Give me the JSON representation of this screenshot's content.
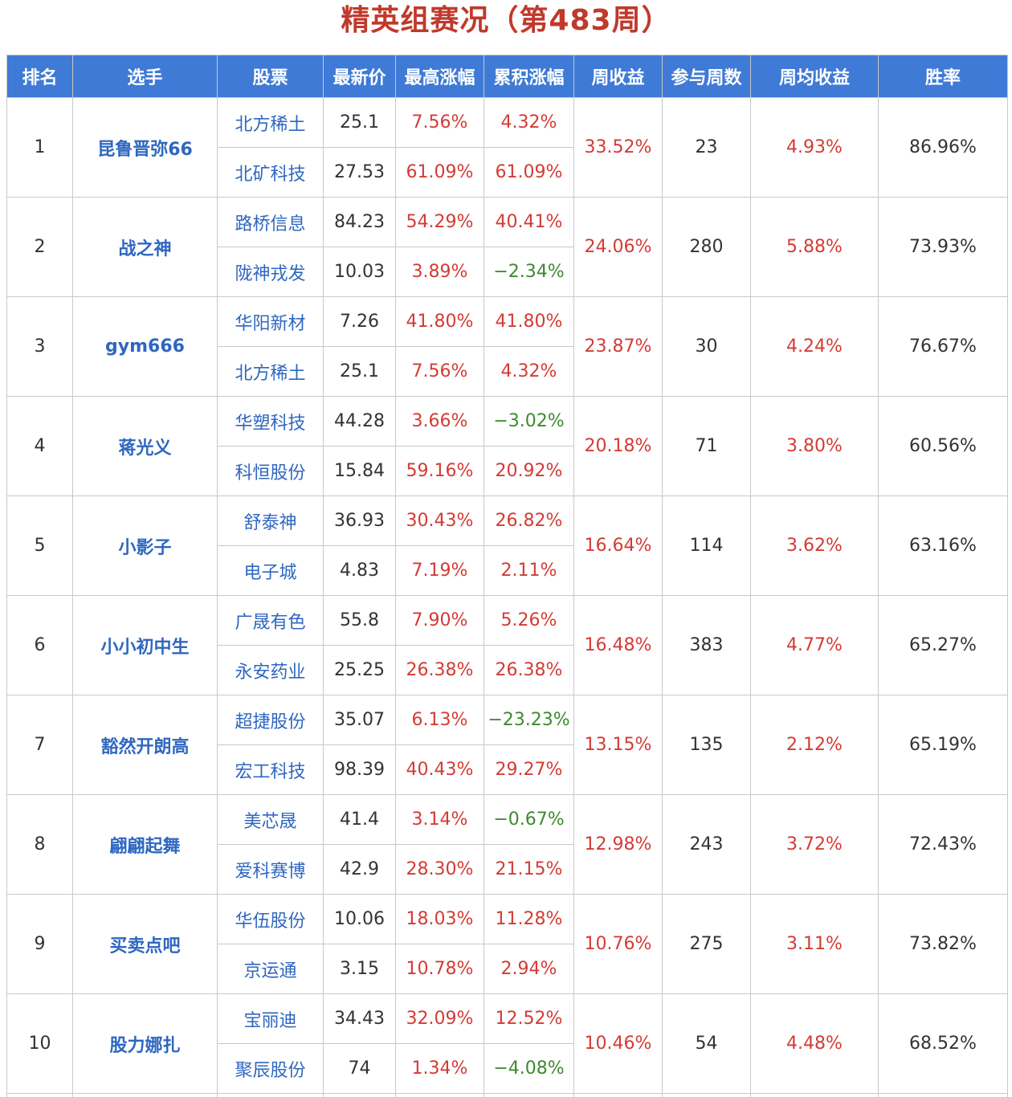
{
  "title": "精英组赛况（第483周）",
  "colors": {
    "title": "#c0392b",
    "header_bg": "#3f7ad6",
    "header_text": "#ffffff",
    "link_blue": "#2f67c0",
    "positive_red": "#d33b35",
    "negative_green": "#3e8a2e",
    "grid": "#c8c8c8"
  },
  "table": {
    "headers": [
      "排名",
      "选手",
      "股票",
      "最新价",
      "最高涨幅",
      "累积涨幅",
      "周收益",
      "参与周数",
      "周均收益",
      "胜率"
    ],
    "rows": [
      {
        "rank": "1",
        "player": "昆鲁晋弥66",
        "stocks": [
          {
            "name": "北方稀土",
            "price": "25.1",
            "max_gain": "7.56%",
            "cum_gain": "4.32%"
          },
          {
            "name": "北矿科技",
            "price": "27.53",
            "max_gain": "61.09%",
            "cum_gain": "61.09%"
          }
        ],
        "weekly_return": "33.52%",
        "weeks": "23",
        "avg_return": "4.93%",
        "win_rate": "86.96%"
      },
      {
        "rank": "2",
        "player": "战之神",
        "stocks": [
          {
            "name": "路桥信息",
            "price": "84.23",
            "max_gain": "54.29%",
            "cum_gain": "40.41%"
          },
          {
            "name": "陇神戎发",
            "price": "10.03",
            "max_gain": "3.89%",
            "cum_gain": "−2.34%"
          }
        ],
        "weekly_return": "24.06%",
        "weeks": "280",
        "avg_return": "5.88%",
        "win_rate": "73.93%"
      },
      {
        "rank": "3",
        "player": "gym666",
        "stocks": [
          {
            "name": "华阳新材",
            "price": "7.26",
            "max_gain": "41.80%",
            "cum_gain": "41.80%"
          },
          {
            "name": "北方稀土",
            "price": "25.1",
            "max_gain": "7.56%",
            "cum_gain": "4.32%"
          }
        ],
        "weekly_return": "23.87%",
        "weeks": "30",
        "avg_return": "4.24%",
        "win_rate": "76.67%"
      },
      {
        "rank": "4",
        "player": "蒋光义",
        "stocks": [
          {
            "name": "华塑科技",
            "price": "44.28",
            "max_gain": "3.66%",
            "cum_gain": "−3.02%"
          },
          {
            "name": "科恒股份",
            "price": "15.84",
            "max_gain": "59.16%",
            "cum_gain": "20.92%"
          }
        ],
        "weekly_return": "20.18%",
        "weeks": "71",
        "avg_return": "3.80%",
        "win_rate": "60.56%"
      },
      {
        "rank": "5",
        "player": "小影子",
        "stocks": [
          {
            "name": "舒泰神",
            "price": "36.93",
            "max_gain": "30.43%",
            "cum_gain": "26.82%"
          },
          {
            "name": "电子城",
            "price": "4.83",
            "max_gain": "7.19%",
            "cum_gain": "2.11%"
          }
        ],
        "weekly_return": "16.64%",
        "weeks": "114",
        "avg_return": "3.62%",
        "win_rate": "63.16%"
      },
      {
        "rank": "6",
        "player": "小小初中生",
        "stocks": [
          {
            "name": "广晟有色",
            "price": "55.8",
            "max_gain": "7.90%",
            "cum_gain": "5.26%"
          },
          {
            "name": "永安药业",
            "price": "25.25",
            "max_gain": "26.38%",
            "cum_gain": "26.38%"
          }
        ],
        "weekly_return": "16.48%",
        "weeks": "383",
        "avg_return": "4.77%",
        "win_rate": "65.27%"
      },
      {
        "rank": "7",
        "player": "豁然开朗高",
        "stocks": [
          {
            "name": "超捷股份",
            "price": "35.07",
            "max_gain": "6.13%",
            "cum_gain": "−23.23%"
          },
          {
            "name": "宏工科技",
            "price": "98.39",
            "max_gain": "40.43%",
            "cum_gain": "29.27%"
          }
        ],
        "weekly_return": "13.15%",
        "weeks": "135",
        "avg_return": "2.12%",
        "win_rate": "65.19%"
      },
      {
        "rank": "8",
        "player": "翩翩起舞",
        "stocks": [
          {
            "name": "美芯晟",
            "price": "41.4",
            "max_gain": "3.14%",
            "cum_gain": "−0.67%"
          },
          {
            "name": "爱科赛博",
            "price": "42.9",
            "max_gain": "28.30%",
            "cum_gain": "21.15%"
          }
        ],
        "weekly_return": "12.98%",
        "weeks": "243",
        "avg_return": "3.72%",
        "win_rate": "72.43%"
      },
      {
        "rank": "9",
        "player": "买卖点吧",
        "stocks": [
          {
            "name": "华伍股份",
            "price": "10.06",
            "max_gain": "18.03%",
            "cum_gain": "11.28%"
          },
          {
            "name": "京运通",
            "price": "3.15",
            "max_gain": "10.78%",
            "cum_gain": "2.94%"
          }
        ],
        "weekly_return": "10.76%",
        "weeks": "275",
        "avg_return": "3.11%",
        "win_rate": "73.82%"
      },
      {
        "rank": "10",
        "player": "股力娜扎",
        "stocks": [
          {
            "name": "宝丽迪",
            "price": "34.43",
            "max_gain": "32.09%",
            "cum_gain": "12.52%"
          },
          {
            "name": "聚辰股份",
            "price": "74",
            "max_gain": "1.34%",
            "cum_gain": "−4.08%"
          }
        ],
        "weekly_return": "10.46%",
        "weeks": "54",
        "avg_return": "4.48%",
        "win_rate": "68.52%"
      }
    ]
  }
}
